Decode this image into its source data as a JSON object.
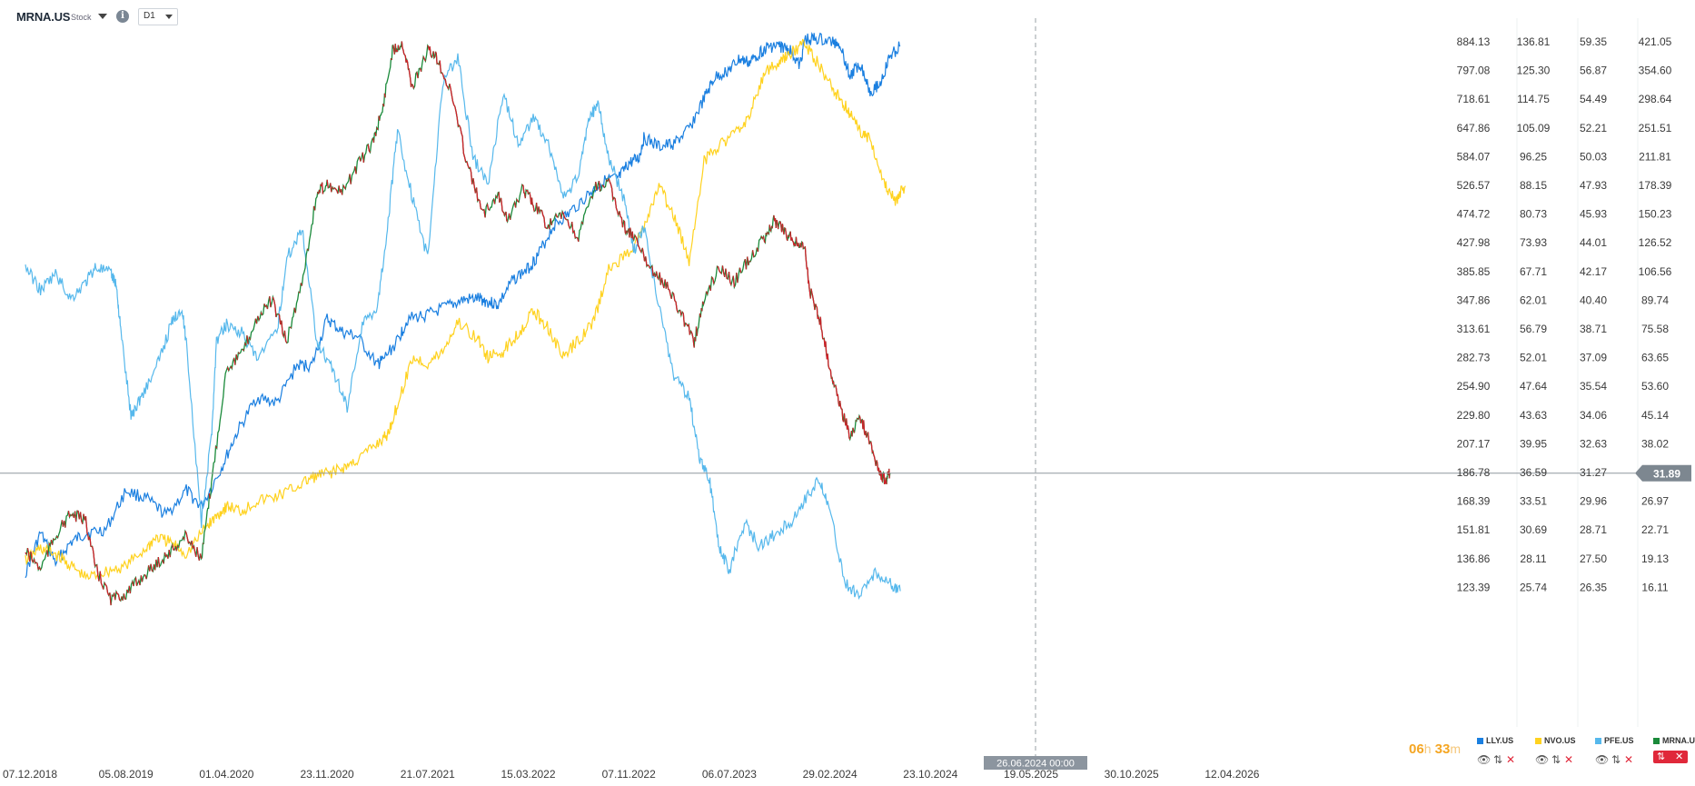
{
  "header": {
    "symbol": "MRNA.US",
    "symbol_type": "Stock",
    "info_glyph": "i",
    "timeframe": "D1"
  },
  "chart_data": {
    "type": "line",
    "main_series": {
      "name": "MRNA.US",
      "style": "candlestick",
      "up_color": "#1a8a3a",
      "down_color": "#d0202a",
      "last_value": 31.89
    },
    "current_price_label": "31.89",
    "crosshair_date_label": "26.06.2024 00:00",
    "x_axis_labels": [
      "07.12.2018",
      "05.08.2019",
      "01.04.2020",
      "23.11.2020",
      "21.07.2021",
      "15.03.2022",
      "07.11.2022",
      "06.07.2023",
      "29.02.2024",
      "23.10.2024",
      "19.05.2025",
      "30.10.2025",
      "12.04.2026"
    ],
    "price_scales": [
      {
        "series": "LLY.US",
        "values": [
          "884.13",
          "797.08",
          "718.61",
          "647.86",
          "584.07",
          "526.57",
          "474.72",
          "427.98",
          "385.85",
          "347.86",
          "313.61",
          "282.73",
          "254.90",
          "229.80",
          "207.17",
          "186.78",
          "168.39",
          "151.81",
          "136.86",
          "123.39"
        ]
      },
      {
        "series": "NVO.US",
        "values": [
          "136.81",
          "125.30",
          "114.75",
          "105.09",
          "96.25",
          "88.15",
          "80.73",
          "73.93",
          "67.71",
          "62.01",
          "56.79",
          "52.01",
          "47.64",
          "43.63",
          "39.95",
          "36.59",
          "33.51",
          "30.69",
          "28.11",
          "25.74"
        ]
      },
      {
        "series": "PFE.US",
        "values": [
          "59.35",
          "56.87",
          "54.49",
          "52.21",
          "50.03",
          "47.93",
          "45.93",
          "44.01",
          "42.17",
          "40.40",
          "38.71",
          "37.09",
          "35.54",
          "34.06",
          "32.63",
          "31.27",
          "29.96",
          "28.71",
          "27.50",
          "26.35"
        ]
      },
      {
        "series": "MRNA.US",
        "values": [
          "421.05",
          "354.60",
          "298.64",
          "251.51",
          "211.81",
          "178.39",
          "150.23",
          "126.52",
          "106.56",
          "89.74",
          "75.58",
          "63.65",
          "53.60",
          "45.14",
          "38.02",
          "",
          "26.97",
          "22.71",
          "19.13",
          "16.11"
        ]
      }
    ],
    "series": [
      {
        "name": "LLY.US",
        "color": "#1a7fe0",
        "points": [
          [
            0,
            130
          ],
          [
            0.15,
            150
          ],
          [
            0.3,
            135
          ],
          [
            0.45,
            145
          ],
          [
            0.6,
            150
          ],
          [
            0.8,
            152
          ],
          [
            1.0,
            175
          ],
          [
            1.2,
            170
          ],
          [
            1.4,
            160
          ],
          [
            1.6,
            175
          ],
          [
            1.75,
            165
          ],
          [
            1.95,
            190
          ],
          [
            2.1,
            215
          ],
          [
            2.3,
            245
          ],
          [
            2.5,
            240
          ],
          [
            2.7,
            275
          ],
          [
            2.85,
            275
          ],
          [
            3.0,
            325
          ],
          [
            3.15,
            310
          ],
          [
            3.3,
            305
          ],
          [
            3.5,
            275
          ],
          [
            3.55,
            280
          ],
          [
            3.7,
            300
          ],
          [
            3.8,
            325
          ],
          [
            4.0,
            330
          ],
          [
            4.2,
            340
          ],
          [
            4.35,
            348
          ],
          [
            4.5,
            350
          ],
          [
            4.6,
            346
          ],
          [
            4.7,
            342
          ],
          [
            4.85,
            375
          ],
          [
            5.0,
            390
          ],
          [
            5.1,
            410
          ],
          [
            5.25,
            455
          ],
          [
            5.4,
            475
          ],
          [
            5.6,
            510
          ],
          [
            5.75,
            535
          ],
          [
            5.9,
            540
          ],
          [
            6.0,
            570
          ],
          [
            6.1,
            580
          ],
          [
            6.15,
            625
          ],
          [
            6.3,
            605
          ],
          [
            6.45,
            612
          ],
          [
            6.6,
            645
          ],
          [
            6.75,
            720
          ],
          [
            6.85,
            775
          ],
          [
            7.0,
            800
          ],
          [
            7.1,
            830
          ],
          [
            7.2,
            820
          ],
          [
            7.3,
            850
          ],
          [
            7.4,
            870
          ],
          [
            7.5,
            870
          ],
          [
            7.6,
            860
          ],
          [
            7.7,
            810
          ],
          [
            7.75,
            890
          ],
          [
            7.85,
            895
          ],
          [
            8.0,
            885
          ],
          [
            8.1,
            880
          ],
          [
            8.2,
            780
          ],
          [
            8.3,
            820
          ],
          [
            8.4,
            740
          ],
          [
            8.5,
            760
          ],
          [
            8.6,
            840
          ],
          [
            8.7,
            870
          ]
        ]
      },
      {
        "name": "NVO.US",
        "color": "#ffd21f",
        "points": [
          [
            0,
            28
          ],
          [
            0.15,
            29
          ],
          [
            0.3,
            28.5
          ],
          [
            0.45,
            27.5
          ],
          [
            0.6,
            26.5
          ],
          [
            0.8,
            27
          ],
          [
            1.0,
            27.5
          ],
          [
            1.2,
            29
          ],
          [
            1.3,
            30
          ],
          [
            1.45,
            29.5
          ],
          [
            1.6,
            28.5
          ],
          [
            1.8,
            31
          ],
          [
            1.9,
            32
          ],
          [
            2.0,
            33
          ],
          [
            2.15,
            32.5
          ],
          [
            2.3,
            33.5
          ],
          [
            2.5,
            34
          ],
          [
            2.7,
            35
          ],
          [
            2.85,
            36
          ],
          [
            3.0,
            36.5
          ],
          [
            3.15,
            37
          ],
          [
            3.3,
            38
          ],
          [
            3.5,
            40
          ],
          [
            3.6,
            41
          ],
          [
            3.7,
            45
          ],
          [
            3.85,
            52
          ],
          [
            4.0,
            51
          ],
          [
            4.15,
            53
          ],
          [
            4.3,
            58
          ],
          [
            4.5,
            55
          ],
          [
            4.6,
            52
          ],
          [
            4.75,
            53
          ],
          [
            4.9,
            56
          ],
          [
            5.05,
            60
          ],
          [
            5.2,
            57
          ],
          [
            5.35,
            52
          ],
          [
            5.5,
            55
          ],
          [
            5.65,
            58
          ],
          [
            5.8,
            68
          ],
          [
            6.0,
            72
          ],
          [
            6.15,
            77
          ],
          [
            6.3,
            88
          ],
          [
            6.45,
            80
          ],
          [
            6.6,
            70
          ],
          [
            6.75,
            95
          ],
          [
            6.9,
            100
          ],
          [
            7.05,
            103
          ],
          [
            7.2,
            109
          ],
          [
            7.35,
            125
          ],
          [
            7.5,
            128
          ],
          [
            7.6,
            132
          ],
          [
            7.75,
            136
          ],
          [
            7.85,
            130
          ],
          [
            8.0,
            120
          ],
          [
            8.1,
            115
          ],
          [
            8.2,
            110
          ],
          [
            8.3,
            104
          ],
          [
            8.4,
            102
          ],
          [
            8.55,
            88
          ],
          [
            8.65,
            84
          ],
          [
            8.75,
            88
          ]
        ]
      },
      {
        "name": "PFE.US",
        "color": "#56b8ec",
        "points": [
          [
            0,
            42.5
          ],
          [
            0.15,
            41
          ],
          [
            0.3,
            42
          ],
          [
            0.45,
            40.5
          ],
          [
            0.6,
            41.5
          ],
          [
            0.7,
            42.5
          ],
          [
            0.85,
            42
          ],
          [
            0.9,
            41.5
          ],
          [
            0.95,
            38.5
          ],
          [
            1.05,
            34
          ],
          [
            1.15,
            35
          ],
          [
            1.3,
            36.5
          ],
          [
            1.45,
            39
          ],
          [
            1.55,
            40
          ],
          [
            1.6,
            38
          ],
          [
            1.75,
            29
          ],
          [
            1.85,
            33
          ],
          [
            1.9,
            38
          ],
          [
            2.0,
            39
          ],
          [
            2.15,
            38.5
          ],
          [
            2.3,
            37
          ],
          [
            2.5,
            38.5
          ],
          [
            2.6,
            43
          ],
          [
            2.75,
            45
          ],
          [
            2.9,
            38
          ],
          [
            3.05,
            36.5
          ],
          [
            3.2,
            34.5
          ],
          [
            3.35,
            39
          ],
          [
            3.5,
            40
          ],
          [
            3.6,
            45
          ],
          [
            3.7,
            52
          ],
          [
            3.85,
            47
          ],
          [
            4.0,
            43
          ],
          [
            4.15,
            56
          ],
          [
            4.3,
            58
          ],
          [
            4.45,
            50
          ],
          [
            4.6,
            48
          ],
          [
            4.75,
            55
          ],
          [
            4.9,
            51
          ],
          [
            5.05,
            53
          ],
          [
            5.2,
            51
          ],
          [
            5.35,
            47
          ],
          [
            5.5,
            48.5
          ],
          [
            5.6,
            53
          ],
          [
            5.7,
            54
          ],
          [
            5.8,
            50
          ],
          [
            5.95,
            47
          ],
          [
            6.05,
            43.5
          ],
          [
            6.15,
            45
          ],
          [
            6.3,
            40
          ],
          [
            6.45,
            36
          ],
          [
            6.6,
            35
          ],
          [
            6.7,
            32
          ],
          [
            6.8,
            31
          ],
          [
            6.9,
            28
          ],
          [
            7.0,
            27
          ],
          [
            7.15,
            29
          ],
          [
            7.3,
            28
          ],
          [
            7.45,
            28.5
          ],
          [
            7.6,
            29
          ],
          [
            7.75,
            30
          ],
          [
            7.9,
            31
          ],
          [
            8.0,
            29.5
          ],
          [
            8.15,
            26.5
          ],
          [
            8.3,
            26
          ],
          [
            8.45,
            27
          ],
          [
            8.6,
            26.5
          ],
          [
            8.7,
            26.2
          ]
        ]
      },
      {
        "name": "MRNA.US",
        "color": "#1a8a3a",
        "points": [
          [
            0,
            20
          ],
          [
            0.15,
            18
          ],
          [
            0.3,
            22
          ],
          [
            0.45,
            25
          ],
          [
            0.6,
            24
          ],
          [
            0.7,
            18
          ],
          [
            0.85,
            15
          ],
          [
            1.0,
            15.5
          ],
          [
            1.15,
            17
          ],
          [
            1.3,
            18.5
          ],
          [
            1.45,
            20
          ],
          [
            1.6,
            22
          ],
          [
            1.75,
            19
          ],
          [
            1.85,
            30
          ],
          [
            2.0,
            60
          ],
          [
            2.15,
            65
          ],
          [
            2.3,
            80
          ],
          [
            2.45,
            90
          ],
          [
            2.6,
            70
          ],
          [
            2.75,
            100
          ],
          [
            2.9,
            170
          ],
          [
            3.0,
            180
          ],
          [
            3.15,
            170
          ],
          [
            3.3,
            200
          ],
          [
            3.45,
            230
          ],
          [
            3.55,
            280
          ],
          [
            3.65,
            400
          ],
          [
            3.75,
            420
          ],
          [
            3.85,
            320
          ],
          [
            4.0,
            400
          ],
          [
            4.1,
            380
          ],
          [
            4.25,
            300
          ],
          [
            4.4,
            200
          ],
          [
            4.55,
            150
          ],
          [
            4.7,
            170
          ],
          [
            4.8,
            145
          ],
          [
            4.95,
            175
          ],
          [
            5.05,
            160
          ],
          [
            5.2,
            140
          ],
          [
            5.35,
            150
          ],
          [
            5.5,
            130
          ],
          [
            5.65,
            175
          ],
          [
            5.8,
            180
          ],
          [
            5.95,
            140
          ],
          [
            6.05,
            130
          ],
          [
            6.2,
            110
          ],
          [
            6.35,
            100
          ],
          [
            6.5,
            85
          ],
          [
            6.65,
            70
          ],
          [
            6.75,
            90
          ],
          [
            6.9,
            110
          ],
          [
            7.05,
            100
          ],
          [
            7.2,
            115
          ],
          [
            7.35,
            130
          ],
          [
            7.45,
            145
          ],
          [
            7.55,
            135
          ],
          [
            7.65,
            128
          ],
          [
            7.75,
            122
          ],
          [
            7.8,
            95
          ],
          [
            7.9,
            80
          ],
          [
            8.0,
            60
          ],
          [
            8.1,
            48
          ],
          [
            8.2,
            40
          ],
          [
            8.3,
            45
          ],
          [
            8.4,
            38
          ],
          [
            8.5,
            32
          ],
          [
            8.55,
            30.5
          ],
          [
            8.6,
            31.89
          ]
        ]
      }
    ]
  },
  "legend": [
    {
      "label": "LLY.US",
      "color": "#1a7fe0"
    },
    {
      "label": "NVO.US",
      "color": "#ffd21f"
    },
    {
      "label": "PFE.US",
      "color": "#56b8ec"
    },
    {
      "label": "MRNA.U...",
      "color": "#1a8a3a"
    }
  ],
  "legend_controls": {
    "eye": "👁",
    "updown": "⇅",
    "close": "✕"
  },
  "mrna_controls": {
    "scale": "⇅",
    "close": "✕"
  },
  "timer": {
    "hours": "06",
    "hours_unit": "h",
    "minutes": "33",
    "minutes_unit": "m"
  }
}
